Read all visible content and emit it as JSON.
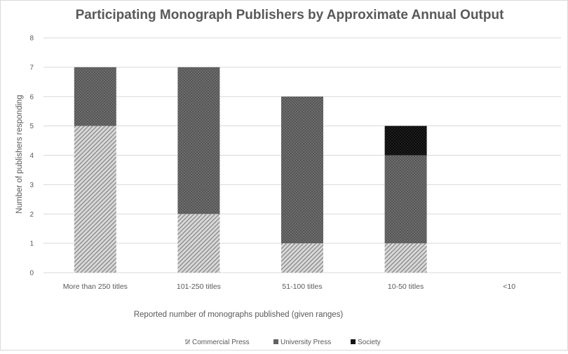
{
  "chart_data": {
    "type": "bar",
    "stacked": true,
    "title": "Participating  Monograph Publishers by Approximate Annual Output",
    "xlabel": "Reported number of monographs published (given ranges)",
    "ylabel": "Number of publishers responding",
    "categories": [
      "More than 250 titles",
      "101-250 titles",
      "51-100 titles",
      "10-50 titles",
      "<10"
    ],
    "ylim": [
      0,
      8
    ],
    "yticks": [
      0,
      1,
      2,
      3,
      4,
      5,
      6,
      7,
      8
    ],
    "grid": true,
    "legend_position": "bottom",
    "series": [
      {
        "name": "Commercial Press",
        "values": [
          5,
          2,
          1,
          1,
          0
        ],
        "color": "#c8c8c8",
        "pattern": "light-diagonal"
      },
      {
        "name": "University Press",
        "values": [
          2,
          5,
          5,
          3,
          0
        ],
        "color": "#6e6e6e",
        "pattern": "dark-checker"
      },
      {
        "name": "Society",
        "values": [
          0,
          0,
          0,
          1,
          0
        ],
        "color": "#0a0a0a",
        "pattern": "black-dotted"
      }
    ]
  }
}
